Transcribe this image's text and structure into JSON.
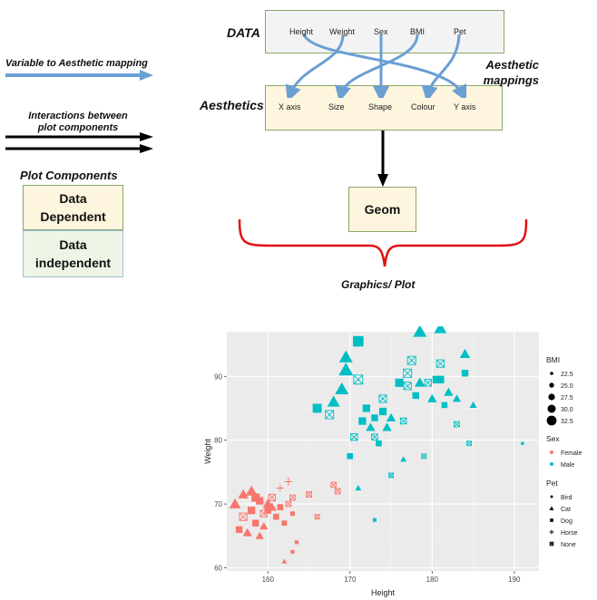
{
  "diagram": {
    "data_label": "DATA",
    "aesthetics_label": "Aesthetics",
    "aesthetic_mappings_label": [
      "Aesthetic",
      "mappings"
    ],
    "variables": [
      "Height",
      "Weight",
      "Sex",
      "BMI",
      "Pet"
    ],
    "aesthetics": [
      "X axis",
      "Size",
      "Shape",
      "Colour",
      "Y axis"
    ],
    "geom_label": "Geom",
    "graphics_label": "Graphics/ Plot",
    "legend_mapping_label": "Variable to Aesthetic mapping",
    "legend_interactions_label": [
      "Interactions between",
      "plot components"
    ],
    "plot_components_label": "Plot Components",
    "data_dependent_label": [
      "Data",
      "Dependent"
    ],
    "data_independent_label": [
      "Data",
      "independent"
    ],
    "colors": {
      "arrow": "#6a9fd4",
      "data_box_fill": "#f3f3f3",
      "dependent_fill": "#fdf5dd",
      "independent_fill": "#eef5e6",
      "box_border": "#86a86a",
      "brace": "#e01010"
    }
  },
  "chart_data": {
    "type": "scatter",
    "xlabel": "Height",
    "ylabel": "Weight",
    "xlim": [
      155,
      193
    ],
    "ylim": [
      59.5,
      97
    ],
    "x_ticks": [
      160,
      170,
      180,
      190
    ],
    "y_ticks": [
      60,
      70,
      80,
      90
    ],
    "grid": true,
    "legend_placement": "right",
    "legend": {
      "bmi_title": "BMI",
      "bmi_values": [
        "22.5",
        "25.0",
        "27.5",
        "30.0",
        "32.5"
      ],
      "sex_title": "Sex",
      "sex_values": [
        "Female",
        "Male"
      ],
      "pet_title": "Pet",
      "pet_values": [
        "Bird",
        "Cat",
        "Dog",
        "Horse",
        "None"
      ]
    },
    "colors": {
      "Female": "#f8766d",
      "Male": "#00bfc4"
    },
    "points": [
      {
        "x": 156.0,
        "y": 70.0,
        "sex": "Female",
        "pet": "Cat",
        "bmi": 29
      },
      {
        "x": 156.5,
        "y": 66.0,
        "sex": "Female",
        "pet": "Dog",
        "bmi": 27
      },
      {
        "x": 157.0,
        "y": 71.5,
        "sex": "Female",
        "pet": "Cat",
        "bmi": 28
      },
      {
        "x": 157.0,
        "y": 68.0,
        "sex": "Female",
        "pet": "None",
        "bmi": 28
      },
      {
        "x": 157.5,
        "y": 65.5,
        "sex": "Female",
        "pet": "Cat",
        "bmi": 27
      },
      {
        "x": 158.0,
        "y": 72.0,
        "sex": "Female",
        "pet": "Cat",
        "bmi": 29
      },
      {
        "x": 158.0,
        "y": 69.0,
        "sex": "Female",
        "pet": "Dog",
        "bmi": 28
      },
      {
        "x": 158.5,
        "y": 67.0,
        "sex": "Female",
        "pet": "Dog",
        "bmi": 27
      },
      {
        "x": 158.5,
        "y": 71.0,
        "sex": "Female",
        "pet": "Dog",
        "bmi": 29
      },
      {
        "x": 159.0,
        "y": 65.0,
        "sex": "Female",
        "pet": "Cat",
        "bmi": 26
      },
      {
        "x": 159.0,
        "y": 70.5,
        "sex": "Female",
        "pet": "Dog",
        "bmi": 28
      },
      {
        "x": 159.5,
        "y": 68.5,
        "sex": "Female",
        "pet": "None",
        "bmi": 27
      },
      {
        "x": 159.5,
        "y": 66.5,
        "sex": "Female",
        "pet": "Cat",
        "bmi": 26
      },
      {
        "x": 160.0,
        "y": 70.0,
        "sex": "Female",
        "pet": "Cat",
        "bmi": 28
      },
      {
        "x": 160.0,
        "y": 69.0,
        "sex": "Female",
        "pet": "Dog",
        "bmi": 27
      },
      {
        "x": 160.5,
        "y": 69.5,
        "sex": "Female",
        "pet": "Cat",
        "bmi": 27
      },
      {
        "x": 160.5,
        "y": 71.0,
        "sex": "Female",
        "pet": "None",
        "bmi": 27
      },
      {
        "x": 161.0,
        "y": 68.0,
        "sex": "Female",
        "pet": "Dog",
        "bmi": 26
      },
      {
        "x": 161.5,
        "y": 72.5,
        "sex": "Female",
        "pet": "Horse",
        "bmi": 25
      },
      {
        "x": 161.5,
        "y": 69.5,
        "sex": "Female",
        "pet": "Dog",
        "bmi": 26
      },
      {
        "x": 162.0,
        "y": 67.0,
        "sex": "Female",
        "pet": "Dog",
        "bmi": 25
      },
      {
        "x": 162.5,
        "y": 73.5,
        "sex": "Female",
        "pet": "Horse",
        "bmi": 26
      },
      {
        "x": 162.5,
        "y": 70.0,
        "sex": "Female",
        "pet": "None",
        "bmi": 25
      },
      {
        "x": 163.0,
        "y": 71.0,
        "sex": "Female",
        "pet": "None",
        "bmi": 25
      },
      {
        "x": 163.0,
        "y": 68.5,
        "sex": "Female",
        "pet": "Dog",
        "bmi": 24
      },
      {
        "x": 163.5,
        "y": 64.0,
        "sex": "Female",
        "pet": "Dog",
        "bmi": 23
      },
      {
        "x": 163.0,
        "y": 62.5,
        "sex": "Female",
        "pet": "Dog",
        "bmi": 23
      },
      {
        "x": 162.0,
        "y": 61.0,
        "sex": "Female",
        "pet": "Cat",
        "bmi": 23
      },
      {
        "x": 165.0,
        "y": 71.5,
        "sex": "Female",
        "pet": "None",
        "bmi": 25
      },
      {
        "x": 166.0,
        "y": 68.0,
        "sex": "Female",
        "pet": "None",
        "bmi": 24
      },
      {
        "x": 168.0,
        "y": 73.0,
        "sex": "Female",
        "pet": "None",
        "bmi": 25
      },
      {
        "x": 168.5,
        "y": 72.0,
        "sex": "Female",
        "pet": "None",
        "bmi": 25
      },
      {
        "x": 166.0,
        "y": 85.0,
        "sex": "Male",
        "pet": "Dog",
        "bmi": 30
      },
      {
        "x": 167.5,
        "y": 84.0,
        "sex": "Male",
        "pet": "None",
        "bmi": 29
      },
      {
        "x": 168.0,
        "y": 86.0,
        "sex": "Male",
        "pet": "Cat",
        "bmi": 30
      },
      {
        "x": 169.0,
        "y": 88.0,
        "sex": "Male",
        "pet": "Cat",
        "bmi": 31
      },
      {
        "x": 169.5,
        "y": 91.0,
        "sex": "Male",
        "pet": "Cat",
        "bmi": 32
      },
      {
        "x": 169.5,
        "y": 93.0,
        "sex": "Male",
        "pet": "Cat",
        "bmi": 31
      },
      {
        "x": 170.0,
        "y": 77.5,
        "sex": "Male",
        "pet": "Dog",
        "bmi": 26
      },
      {
        "x": 170.5,
        "y": 80.5,
        "sex": "Male",
        "pet": "None",
        "bmi": 27
      },
      {
        "x": 171.0,
        "y": 89.5,
        "sex": "Male",
        "pet": "None",
        "bmi": 30
      },
      {
        "x": 171.0,
        "y": 95.5,
        "sex": "Male",
        "pet": "Dog",
        "bmi": 32
      },
      {
        "x": 171.0,
        "y": 72.5,
        "sex": "Male",
        "pet": "Cat",
        "bmi": 24
      },
      {
        "x": 171.5,
        "y": 83.0,
        "sex": "Male",
        "pet": "Dog",
        "bmi": 28
      },
      {
        "x": 172.0,
        "y": 85.0,
        "sex": "Male",
        "pet": "Dog",
        "bmi": 28
      },
      {
        "x": 172.5,
        "y": 82.0,
        "sex": "Male",
        "pet": "Cat",
        "bmi": 27
      },
      {
        "x": 173.0,
        "y": 83.5,
        "sex": "Male",
        "pet": "Dog",
        "bmi": 27
      },
      {
        "x": 173.0,
        "y": 80.5,
        "sex": "Male",
        "pet": "None",
        "bmi": 26
      },
      {
        "x": 173.5,
        "y": 79.5,
        "sex": "Male",
        "pet": "Dog",
        "bmi": 26
      },
      {
        "x": 173.0,
        "y": 67.5,
        "sex": "Male",
        "pet": "Dog",
        "bmi": 23
      },
      {
        "x": 174.0,
        "y": 86.5,
        "sex": "Male",
        "pet": "None",
        "bmi": 28
      },
      {
        "x": 174.0,
        "y": 84.5,
        "sex": "Male",
        "pet": "Dog",
        "bmi": 28
      },
      {
        "x": 174.5,
        "y": 82.0,
        "sex": "Male",
        "pet": "Cat",
        "bmi": 27
      },
      {
        "x": 175.0,
        "y": 83.5,
        "sex": "Male",
        "pet": "Cat",
        "bmi": 27
      },
      {
        "x": 175.0,
        "y": 74.5,
        "sex": "Male",
        "pet": "None",
        "bmi": 24
      },
      {
        "x": 176.0,
        "y": 89.0,
        "sex": "Male",
        "pet": "Dog",
        "bmi": 29
      },
      {
        "x": 176.5,
        "y": 83.0,
        "sex": "Male",
        "pet": "None",
        "bmi": 26
      },
      {
        "x": 176.5,
        "y": 77.0,
        "sex": "Male",
        "pet": "Cat",
        "bmi": 24
      },
      {
        "x": 177.0,
        "y": 90.5,
        "sex": "Male",
        "pet": "None",
        "bmi": 29
      },
      {
        "x": 177.0,
        "y": 88.5,
        "sex": "Male",
        "pet": "None",
        "bmi": 28
      },
      {
        "x": 177.5,
        "y": 92.5,
        "sex": "Male",
        "pet": "None",
        "bmi": 29
      },
      {
        "x": 178.0,
        "y": 87.0,
        "sex": "Male",
        "pet": "Dog",
        "bmi": 27
      },
      {
        "x": 178.5,
        "y": 97.0,
        "sex": "Male",
        "pet": "Cat",
        "bmi": 31
      },
      {
        "x": 178.5,
        "y": 89.0,
        "sex": "Male",
        "pet": "Cat",
        "bmi": 28
      },
      {
        "x": 179.0,
        "y": 77.5,
        "sex": "Male",
        "pet": "None",
        "bmi": 24
      },
      {
        "x": 179.5,
        "y": 89.0,
        "sex": "Male",
        "pet": "None",
        "bmi": 27
      },
      {
        "x": 180.0,
        "y": 86.5,
        "sex": "Male",
        "pet": "Cat",
        "bmi": 27
      },
      {
        "x": 180.5,
        "y": 89.5,
        "sex": "Male",
        "pet": "Dog",
        "bmi": 28
      },
      {
        "x": 181.0,
        "y": 92.0,
        "sex": "Male",
        "pet": "None",
        "bmi": 28
      },
      {
        "x": 181.0,
        "y": 89.5,
        "sex": "Male",
        "pet": "Dog",
        "bmi": 28
      },
      {
        "x": 181.0,
        "y": 97.5,
        "sex": "Male",
        "pet": "Cat",
        "bmi": 30
      },
      {
        "x": 181.5,
        "y": 85.5,
        "sex": "Male",
        "pet": "Dog",
        "bmi": 26
      },
      {
        "x": 182.0,
        "y": 87.5,
        "sex": "Male",
        "pet": "Cat",
        "bmi": 27
      },
      {
        "x": 183.0,
        "y": 86.5,
        "sex": "Male",
        "pet": "Cat",
        "bmi": 26
      },
      {
        "x": 183.0,
        "y": 82.5,
        "sex": "Male",
        "pet": "None",
        "bmi": 25
      },
      {
        "x": 184.0,
        "y": 93.5,
        "sex": "Male",
        "pet": "Cat",
        "bmi": 28
      },
      {
        "x": 184.0,
        "y": 90.5,
        "sex": "Male",
        "pet": "Dog",
        "bmi": 27
      },
      {
        "x": 184.5,
        "y": 79.5,
        "sex": "Male",
        "pet": "None",
        "bmi": 24
      },
      {
        "x": 185.0,
        "y": 85.5,
        "sex": "Male",
        "pet": "Cat",
        "bmi": 25
      },
      {
        "x": 191.0,
        "y": 79.5,
        "sex": "Male",
        "pet": "Dog",
        "bmi": 22
      }
    ]
  }
}
